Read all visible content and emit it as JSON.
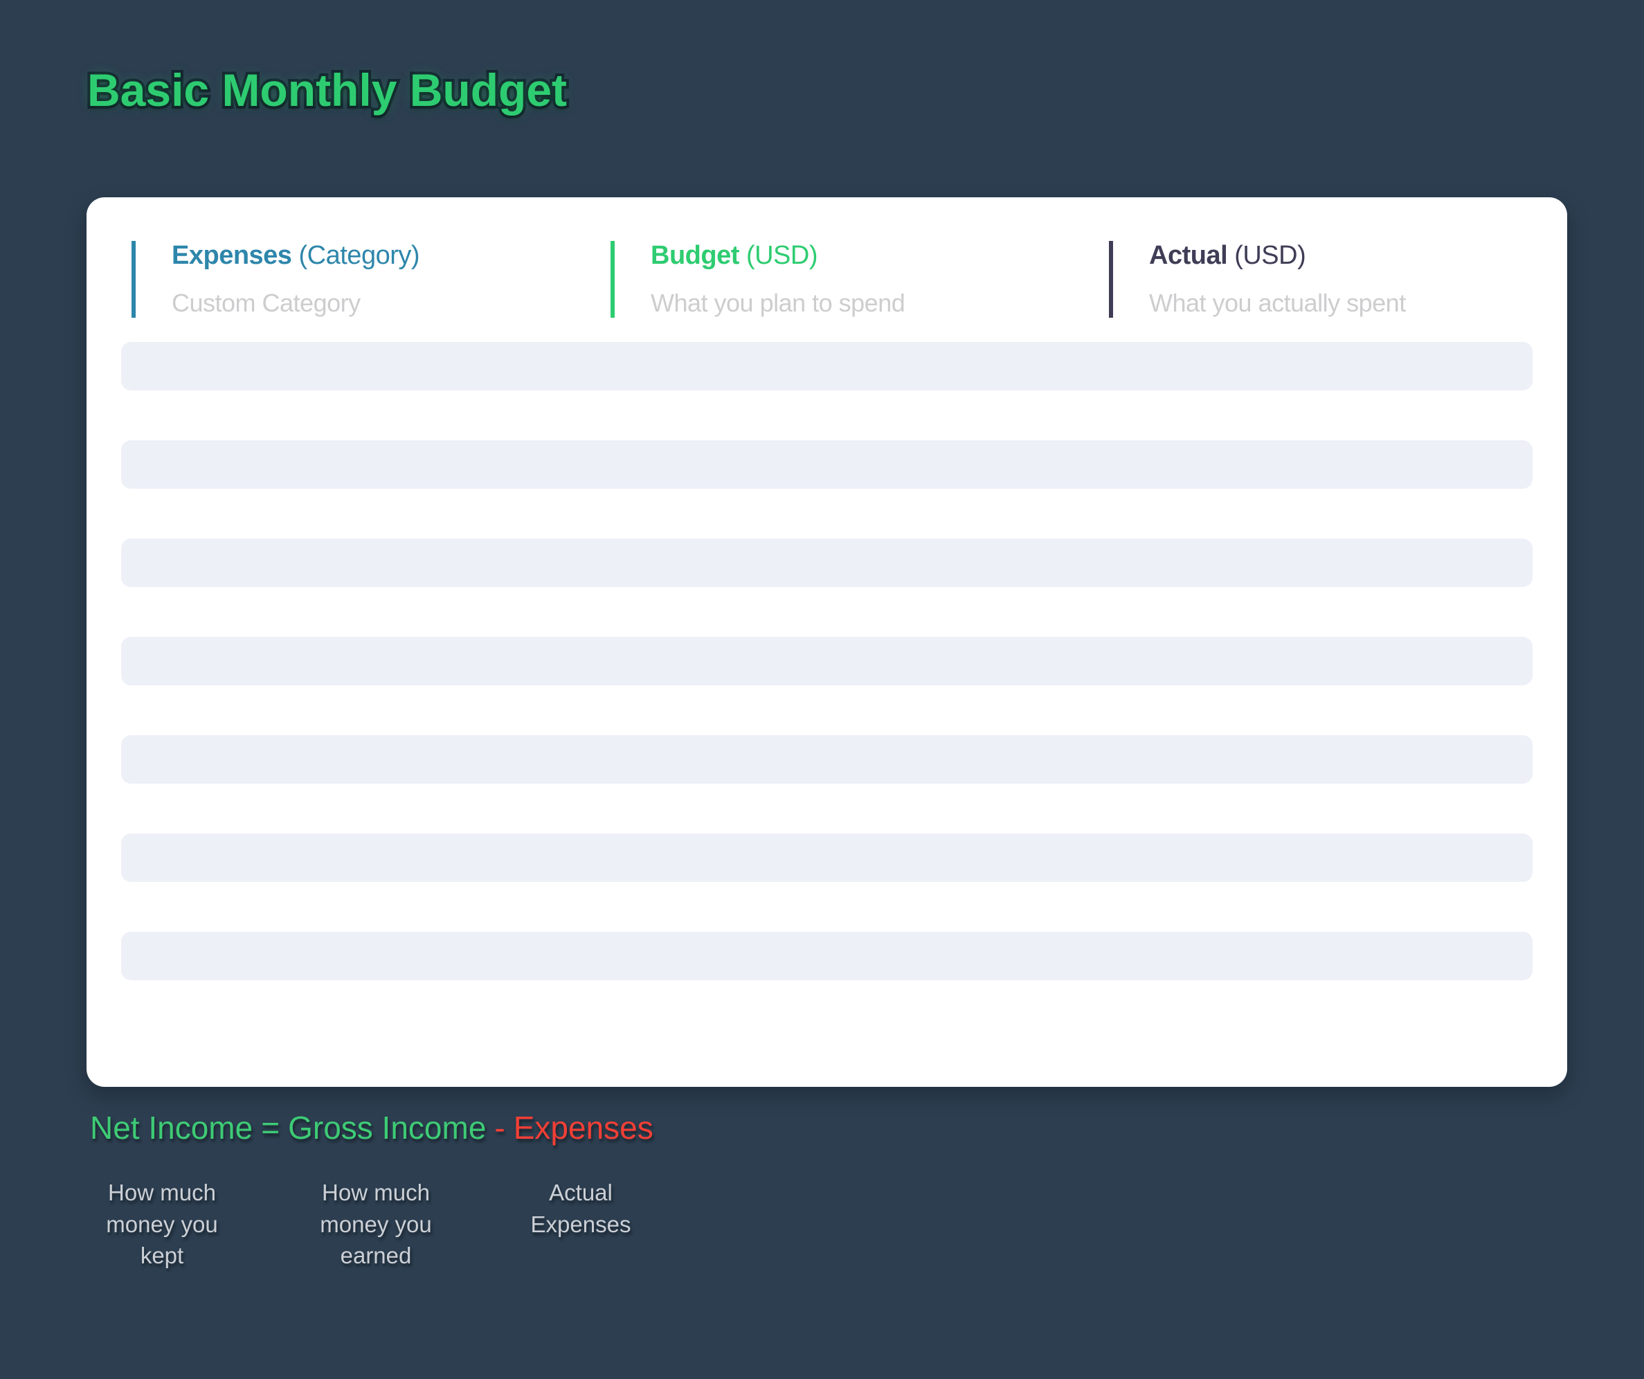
{
  "page": {
    "title": "Basic Monthly Budget",
    "background_color": "#2c3e50",
    "card_color": "#ffffff",
    "row_fill_color": "#edf0f7",
    "title_color": "#2ecc71"
  },
  "table": {
    "columns": [
      {
        "name": "Expenses",
        "qualifier": "(Category)",
        "subtitle": "Custom Category",
        "accent_color": "#2e86ab"
      },
      {
        "name": "Budget",
        "qualifier": "(USD)",
        "subtitle": "What you plan to spend",
        "accent_color": "#2ecc71"
      },
      {
        "name": "Actual",
        "qualifier": "(USD)",
        "subtitle": "What you actually spent",
        "accent_color": "#3f3d56"
      }
    ],
    "row_count": 7,
    "rows_are_empty": true
  },
  "formula": {
    "parts": [
      {
        "text": "Net Income",
        "color": "#3ecb75"
      },
      {
        "text": "=",
        "color": "#3ecb75"
      },
      {
        "text": "Gross Income",
        "color": "#3ecb75"
      },
      {
        "text": "-",
        "color": "#f23f36"
      },
      {
        "text": "Expenses",
        "color": "#f23f36"
      }
    ]
  },
  "annotations": [
    {
      "text": "How much money you kept"
    },
    {
      "text": "How much money you earned"
    },
    {
      "text": "Actual Expenses"
    }
  ]
}
